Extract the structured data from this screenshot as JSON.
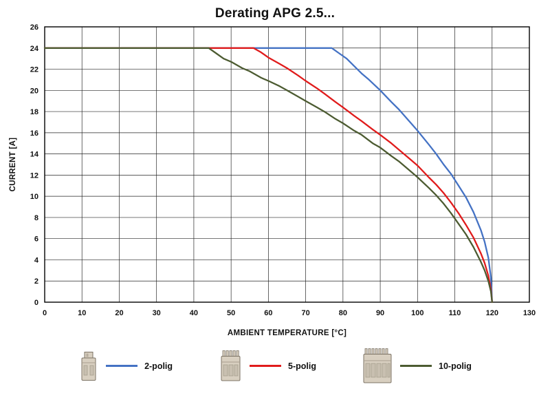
{
  "chart_data": {
    "type": "line",
    "title": "Derating APG 2.5...",
    "xlabel": "AMBIENT TEMPERATURE [°C]",
    "ylabel": "CURRENT [A]",
    "xlim": [
      0,
      130
    ],
    "ylim": [
      0,
      26
    ],
    "x_ticks": [
      0,
      10,
      20,
      30,
      40,
      50,
      60,
      70,
      80,
      90,
      100,
      110,
      120,
      130
    ],
    "y_ticks": [
      0,
      2,
      4,
      6,
      8,
      10,
      12,
      14,
      16,
      18,
      20,
      22,
      24,
      26
    ],
    "grid": true,
    "grid_color": "#262626",
    "border_color": "#000000",
    "legend_position": "bottom",
    "series": [
      {
        "name": "2-polig",
        "color": "#4472C4",
        "points": [
          [
            0,
            24
          ],
          [
            77,
            24
          ],
          [
            79,
            23.5
          ],
          [
            81,
            23.0
          ],
          [
            83,
            22.3
          ],
          [
            85,
            21.6
          ],
          [
            87,
            21.0
          ],
          [
            90,
            20.0
          ],
          [
            93,
            18.9
          ],
          [
            95,
            18.2
          ],
          [
            98,
            17.0
          ],
          [
            100,
            16.2
          ],
          [
            103,
            14.9
          ],
          [
            105,
            14.0
          ],
          [
            107,
            13.0
          ],
          [
            109,
            12.1
          ],
          [
            111,
            11.0
          ],
          [
            113,
            9.9
          ],
          [
            115,
            8.5
          ],
          [
            117,
            6.8
          ],
          [
            118,
            5.7
          ],
          [
            119,
            4.2
          ],
          [
            119.7,
            2.3
          ],
          [
            120,
            0
          ]
        ]
      },
      {
        "name": "5-polig",
        "color": "#E01B1B",
        "points": [
          [
            0,
            24
          ],
          [
            56,
            24
          ],
          [
            58,
            23.6
          ],
          [
            60,
            23.1
          ],
          [
            63,
            22.5
          ],
          [
            65,
            22.1
          ],
          [
            68,
            21.4
          ],
          [
            70,
            20.9
          ],
          [
            73,
            20.2
          ],
          [
            75,
            19.7
          ],
          [
            78,
            18.9
          ],
          [
            80,
            18.4
          ],
          [
            83,
            17.6
          ],
          [
            85,
            17.1
          ],
          [
            88,
            16.3
          ],
          [
            90,
            15.8
          ],
          [
            93,
            15.0
          ],
          [
            95,
            14.4
          ],
          [
            98,
            13.5
          ],
          [
            100,
            12.9
          ],
          [
            103,
            11.8
          ],
          [
            105,
            11.1
          ],
          [
            107,
            10.3
          ],
          [
            109,
            9.4
          ],
          [
            111,
            8.4
          ],
          [
            113,
            7.3
          ],
          [
            115,
            6.1
          ],
          [
            117,
            4.6
          ],
          [
            118,
            3.7
          ],
          [
            119,
            2.5
          ],
          [
            119.7,
            1.2
          ],
          [
            120,
            0
          ]
        ]
      },
      {
        "name": "10-polig",
        "color": "#4C5B31",
        "points": [
          [
            0,
            24
          ],
          [
            44,
            24
          ],
          [
            46,
            23.5
          ],
          [
            48,
            23.0
          ],
          [
            50,
            22.7
          ],
          [
            53,
            22.1
          ],
          [
            55,
            21.8
          ],
          [
            58,
            21.2
          ],
          [
            60,
            20.9
          ],
          [
            63,
            20.4
          ],
          [
            65,
            20.0
          ],
          [
            68,
            19.4
          ],
          [
            70,
            19.0
          ],
          [
            73,
            18.4
          ],
          [
            75,
            18.0
          ],
          [
            78,
            17.3
          ],
          [
            80,
            16.9
          ],
          [
            83,
            16.2
          ],
          [
            85,
            15.8
          ],
          [
            88,
            15.0
          ],
          [
            90,
            14.6
          ],
          [
            93,
            13.8
          ],
          [
            95,
            13.3
          ],
          [
            98,
            12.4
          ],
          [
            100,
            11.8
          ],
          [
            103,
            10.8
          ],
          [
            105,
            10.1
          ],
          [
            107,
            9.3
          ],
          [
            109,
            8.4
          ],
          [
            111,
            7.4
          ],
          [
            113,
            6.4
          ],
          [
            115,
            5.2
          ],
          [
            117,
            3.8
          ],
          [
            118,
            3.0
          ],
          [
            119,
            2.0
          ],
          [
            119.7,
            1.0
          ],
          [
            120,
            0
          ]
        ]
      }
    ]
  },
  "legend": {
    "items": [
      {
        "label": "2-polig",
        "icon": "connector-2pole-icon",
        "color": "#4472C4"
      },
      {
        "label": "5-polig",
        "icon": "connector-5pole-icon",
        "color": "#E01B1B"
      },
      {
        "label": "10-polig",
        "icon": "connector-10pole-icon",
        "color": "#4C5B31"
      }
    ]
  }
}
